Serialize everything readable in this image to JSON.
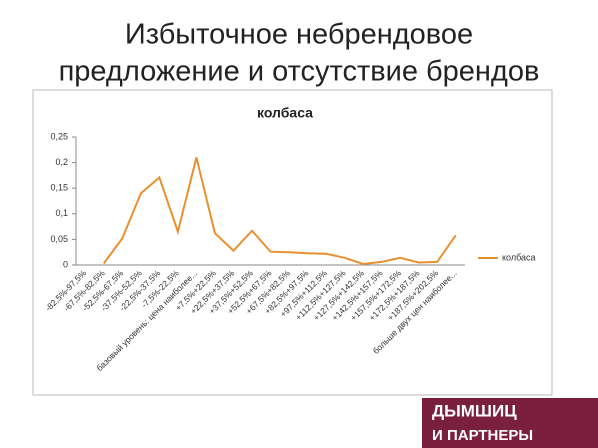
{
  "slide_title": [
    "Избыточное небрендовое",
    "предложение и отсутствие брендов"
  ],
  "logo": [
    "ДЫМШИЦ",
    "И ПАРТНЕРЫ"
  ],
  "chart_data": {
    "type": "line",
    "title": "колбаса",
    "categories": [
      "-82,5%-97,5%",
      "-67,5%-82,5%",
      "-52,5%-67,5%",
      "-37,5%-52,5%",
      "-22,5%-37,5%",
      "-7,5%-22,5%",
      "базовый уровень: цена наиболее...",
      "+7,5%+22,5%",
      "+22,5%+37,5%",
      "+37,5%+52,5%",
      "+52,5%+67,5%",
      "+67,5%+82,5%",
      "+82,5%+97,5%",
      "+97,5%+112,5%",
      "+112,5%+127,5%",
      "+127,5%+142,5%",
      "+142,5%+157,5%",
      "+157,5%+172,5%",
      "+172,5%+187,5%",
      "+187,5%+202,5%",
      "больше двух цен наиболее..."
    ],
    "series": [
      {
        "name": "колбаса",
        "color": "#e8902f",
        "values": [
          null,
          0.003,
          0.052,
          0.14,
          0.171,
          0.065,
          0.21,
          0.062,
          0.028,
          0.067,
          0.026,
          0.025,
          0.023,
          0.022,
          0.014,
          0.002,
          0.006,
          0.014,
          0.005,
          0.006,
          0.058
        ]
      }
    ],
    "ylim": [
      0,
      0.25
    ],
    "yticks": [
      0,
      {
        "value": 0.05,
        "label": "0,05"
      },
      {
        "value": 0.1,
        "label": "0,1"
      },
      {
        "value": 0.15,
        "label": "0,15"
      },
      {
        "value": 0.2,
        "label": "0,2"
      },
      {
        "value": 0.25,
        "label": "0,25"
      }
    ],
    "grid": false,
    "legend": "right"
  }
}
